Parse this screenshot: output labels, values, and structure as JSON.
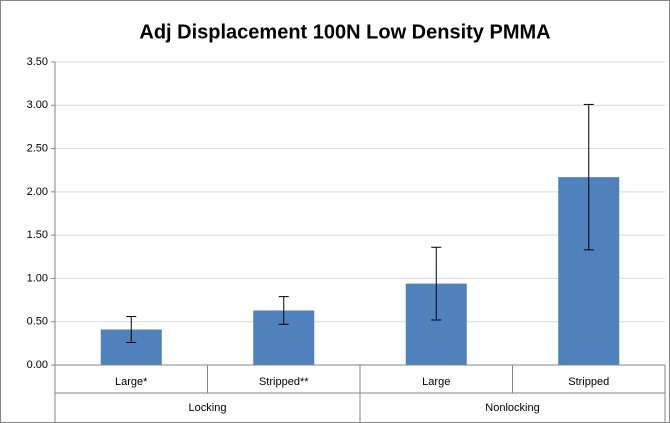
{
  "chart_data": {
    "type": "bar",
    "title": "Adj Displacement 100N Low Density PMMA",
    "categories": [
      "Large*",
      "Stripped**",
      "Large",
      "Stripped"
    ],
    "groups": [
      "Locking",
      "Nonlocking"
    ],
    "values": [
      0.41,
      0.63,
      0.94,
      2.17
    ],
    "errors": [
      0.15,
      0.16,
      0.42,
      0.84
    ],
    "color": "#4f81bd",
    "ylim": [
      0,
      3.5
    ],
    "yticks": [
      {
        "value": 0,
        "label": "0.00"
      },
      {
        "value": 0.5,
        "label": "0.50"
      },
      {
        "value": 1,
        "label": "1.00"
      },
      {
        "value": 1.5,
        "label": "1.50"
      },
      {
        "value": 2,
        "label": "2.00"
      },
      {
        "value": 2.5,
        "label": "2.50"
      },
      {
        "value": 3,
        "label": "3.00"
      },
      {
        "value": 3.5,
        "label": "3.50"
      }
    ],
    "grid": true
  }
}
